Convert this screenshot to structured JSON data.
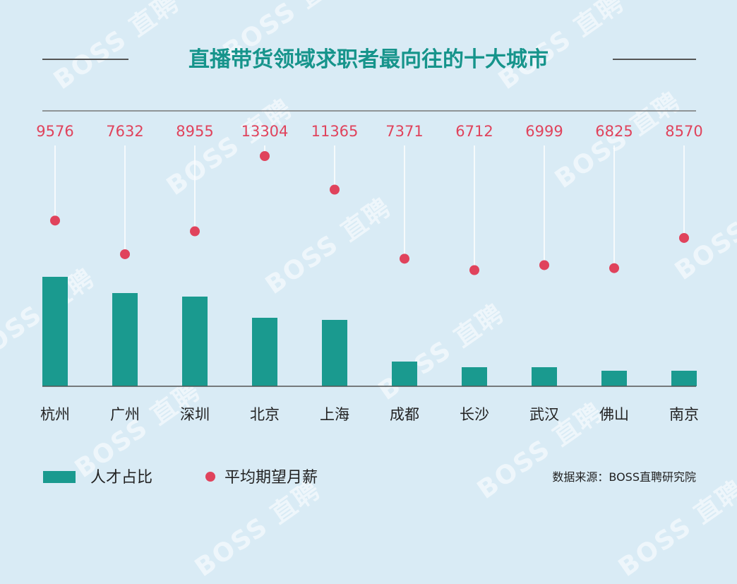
{
  "chart_data": {
    "type": "bar",
    "title": "直播带货领域求职者最向往的十大城市",
    "categories": [
      "杭州",
      "广州",
      "深圳",
      "北京",
      "上海",
      "成都",
      "长沙",
      "武汉",
      "佛山",
      "南京"
    ],
    "series": [
      {
        "name": "人才占比",
        "type": "bar",
        "values": [
          15.5,
          13.2,
          12.7,
          9.7,
          9.4,
          3.5,
          2.7,
          2.7,
          2.2,
          2.2
        ]
      },
      {
        "name": "平均期望月薪",
        "type": "dot",
        "values": [
          9576,
          7632,
          8955,
          13304,
          11365,
          7371,
          6712,
          6999,
          6825,
          8570
        ]
      }
    ],
    "legend": "bottom-left",
    "grid": false
  },
  "source": "数据来源：BOSS直聘研究院",
  "watermark": "BOSS 直聘",
  "colors": {
    "background": "#d9ebf5",
    "bar": "#1a9a8f",
    "dot": "#e0435c",
    "title": "#16948b",
    "text": "#222222",
    "guide": "#ffffff",
    "rule": "#555555"
  }
}
